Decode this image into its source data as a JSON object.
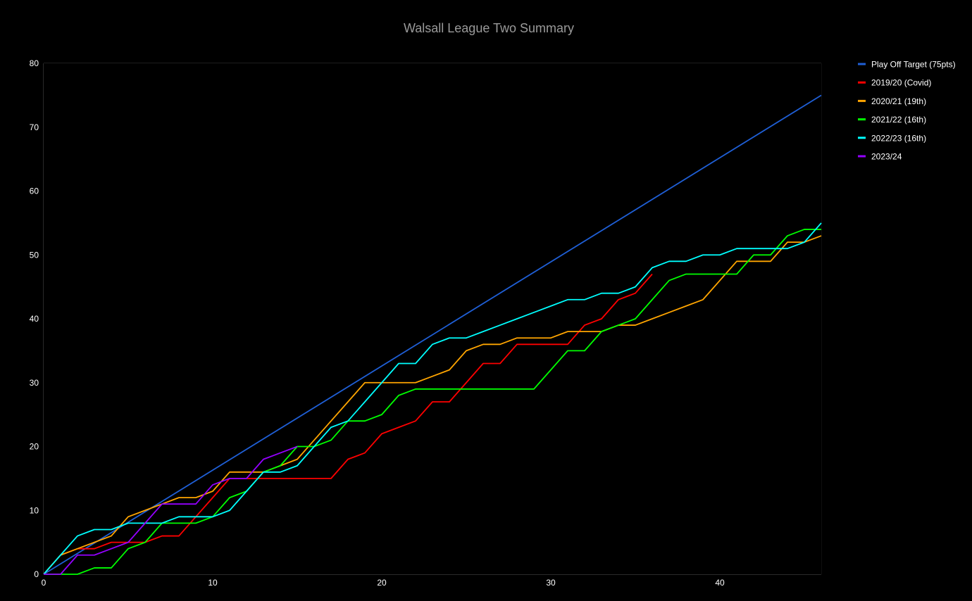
{
  "chart_data": {
    "type": "line",
    "title": "Walsall League Two Summary",
    "xlabel": "",
    "ylabel": "",
    "xlim": [
      0,
      46
    ],
    "ylim": [
      0,
      80
    ],
    "x_ticks": [
      0,
      10,
      20,
      30,
      40
    ],
    "y_ticks": [
      0,
      10,
      20,
      30,
      40,
      50,
      60,
      70,
      80
    ],
    "grid": true,
    "legend_position": "right",
    "series": [
      {
        "name": "Play Off Target (75pts)",
        "color": "#1f5fd6",
        "x": [
          0,
          46
        ],
        "y": [
          0,
          75
        ]
      },
      {
        "name": "2019/20 (Covid)",
        "color": "#ff0000",
        "x": [
          0,
          1,
          2,
          3,
          4,
          5,
          6,
          7,
          8,
          9,
          10,
          11,
          12,
          13,
          14,
          15,
          16,
          17,
          18,
          19,
          20,
          21,
          22,
          23,
          24,
          25,
          26,
          27,
          28,
          29,
          30,
          31,
          32,
          33,
          34,
          35,
          36
        ],
        "y": [
          0,
          3,
          4,
          4,
          5,
          5,
          5,
          6,
          6,
          9,
          12,
          15,
          15,
          15,
          15,
          15,
          15,
          15,
          18,
          19,
          22,
          23,
          24,
          27,
          27,
          30,
          33,
          33,
          36,
          36,
          36,
          36,
          39,
          40,
          43,
          44,
          47
        ]
      },
      {
        "name": "2020/21 (19th)",
        "color": "#ffa500",
        "x": [
          0,
          1,
          2,
          3,
          4,
          5,
          6,
          7,
          8,
          9,
          10,
          11,
          12,
          13,
          14,
          15,
          16,
          17,
          18,
          19,
          20,
          21,
          22,
          23,
          24,
          25,
          26,
          27,
          28,
          29,
          30,
          31,
          32,
          33,
          34,
          35,
          36,
          37,
          38,
          39,
          40,
          41,
          42,
          43,
          44,
          45,
          46
        ],
        "y": [
          0,
          3,
          4,
          5,
          6,
          9,
          10,
          11,
          12,
          12,
          13,
          16,
          16,
          16,
          17,
          18,
          21,
          24,
          27,
          30,
          30,
          30,
          30,
          31,
          32,
          35,
          36,
          36,
          37,
          37,
          37,
          38,
          38,
          38,
          39,
          39,
          40,
          41,
          42,
          43,
          46,
          49,
          49,
          49,
          52,
          52,
          53
        ]
      },
      {
        "name": "2021/22 (16th)",
        "color": "#00ff00",
        "x": [
          0,
          1,
          2,
          3,
          4,
          5,
          6,
          7,
          8,
          9,
          10,
          11,
          12,
          13,
          14,
          15,
          16,
          17,
          18,
          19,
          20,
          21,
          22,
          23,
          24,
          25,
          26,
          27,
          28,
          29,
          30,
          31,
          32,
          33,
          34,
          35,
          36,
          37,
          38,
          39,
          40,
          41,
          42,
          43,
          44,
          45,
          46
        ],
        "y": [
          0,
          0,
          0,
          1,
          1,
          4,
          5,
          8,
          8,
          8,
          9,
          12,
          13,
          16,
          17,
          20,
          20,
          21,
          24,
          24,
          25,
          28,
          29,
          29,
          29,
          29,
          29,
          29,
          29,
          29,
          32,
          35,
          35,
          38,
          39,
          40,
          43,
          46,
          47,
          47,
          47,
          47,
          50,
          50,
          53,
          54,
          54
        ]
      },
      {
        "name": "2022/23 (16th)",
        "color": "#00ffff",
        "x": [
          0,
          1,
          2,
          3,
          4,
          5,
          6,
          7,
          8,
          9,
          10,
          11,
          12,
          13,
          14,
          15,
          16,
          17,
          18,
          19,
          20,
          21,
          22,
          23,
          24,
          25,
          26,
          27,
          28,
          29,
          30,
          31,
          32,
          33,
          34,
          35,
          36,
          37,
          38,
          39,
          40,
          41,
          42,
          43,
          44,
          45,
          46
        ],
        "y": [
          0,
          3,
          6,
          7,
          7,
          8,
          8,
          8,
          9,
          9,
          9,
          10,
          13,
          16,
          16,
          17,
          20,
          23,
          24,
          27,
          30,
          33,
          33,
          36,
          37,
          37,
          38,
          39,
          40,
          41,
          42,
          43,
          43,
          44,
          44,
          45,
          48,
          49,
          49,
          50,
          50,
          51,
          51,
          51,
          51,
          52,
          55
        ]
      },
      {
        "name": "2023/24",
        "color": "#9400ff",
        "x": [
          0,
          1,
          2,
          3,
          4,
          5,
          6,
          7,
          8,
          9,
          10,
          11,
          12,
          13,
          14,
          15
        ],
        "y": [
          0,
          0,
          3,
          3,
          4,
          5,
          8,
          11,
          11,
          11,
          14,
          15,
          15,
          18,
          19,
          20
        ]
      }
    ]
  }
}
